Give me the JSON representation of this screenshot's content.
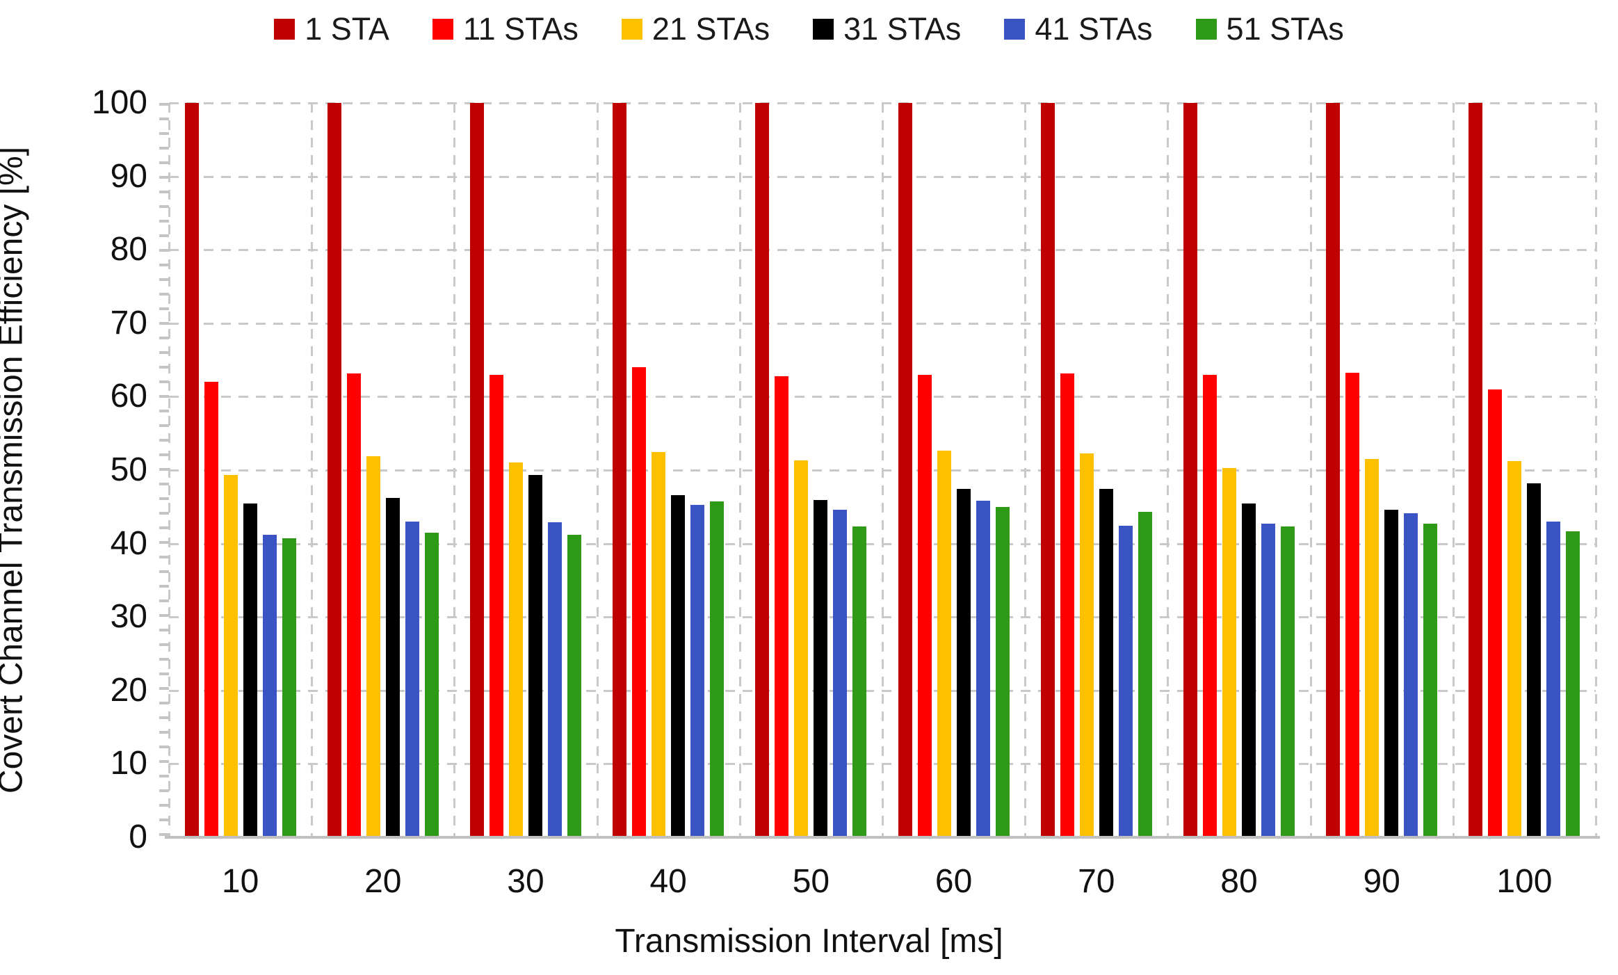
{
  "chart_data": {
    "type": "bar",
    "title": "",
    "xlabel": "Transmission Interval [ms]",
    "ylabel": "Covert Channel Transmission Efficiency [%]",
    "categories": [
      "10",
      "20",
      "30",
      "40",
      "50",
      "60",
      "70",
      "80",
      "90",
      "100"
    ],
    "series": [
      {
        "name": "1 STA",
        "color": "#C00000",
        "values": [
          100,
          100,
          100,
          100,
          100,
          100,
          100,
          100,
          100,
          100
        ]
      },
      {
        "name": "11 STAs",
        "color": "#FF0000",
        "values": [
          62.0,
          63.2,
          63.0,
          64.0,
          62.8,
          63.0,
          63.2,
          63.0,
          63.3,
          61.0
        ]
      },
      {
        "name": "21 STAs",
        "color": "#FFC000",
        "values": [
          49.3,
          51.9,
          51.0,
          52.5,
          51.3,
          52.7,
          52.3,
          50.3,
          51.5,
          51.2
        ]
      },
      {
        "name": "31 STAs",
        "color": "#000000",
        "values": [
          45.5,
          46.2,
          49.3,
          46.6,
          45.9,
          47.4,
          47.4,
          45.5,
          44.6,
          48.2
        ]
      },
      {
        "name": "41 STAs",
        "color": "#3B54C4",
        "values": [
          41.2,
          43.0,
          42.9,
          45.3,
          44.6,
          45.8,
          42.4,
          42.7,
          44.1,
          43.0
        ]
      },
      {
        "name": "51 STAs",
        "color": "#2F9A17",
        "values": [
          40.7,
          41.5,
          41.2,
          45.7,
          42.3,
          45.0,
          44.3,
          42.3,
          42.7,
          41.7
        ]
      }
    ],
    "ylim": [
      0,
      100
    ],
    "yticks": [
      0,
      10,
      20,
      30,
      40,
      50,
      60,
      70,
      80,
      90,
      100
    ],
    "grid": true,
    "gridline_style": "dashed",
    "legend_position": "top",
    "colors": {
      "gridline": "#c9c9c9",
      "axis_line": "#c0c0c0",
      "text": "#111111"
    }
  }
}
